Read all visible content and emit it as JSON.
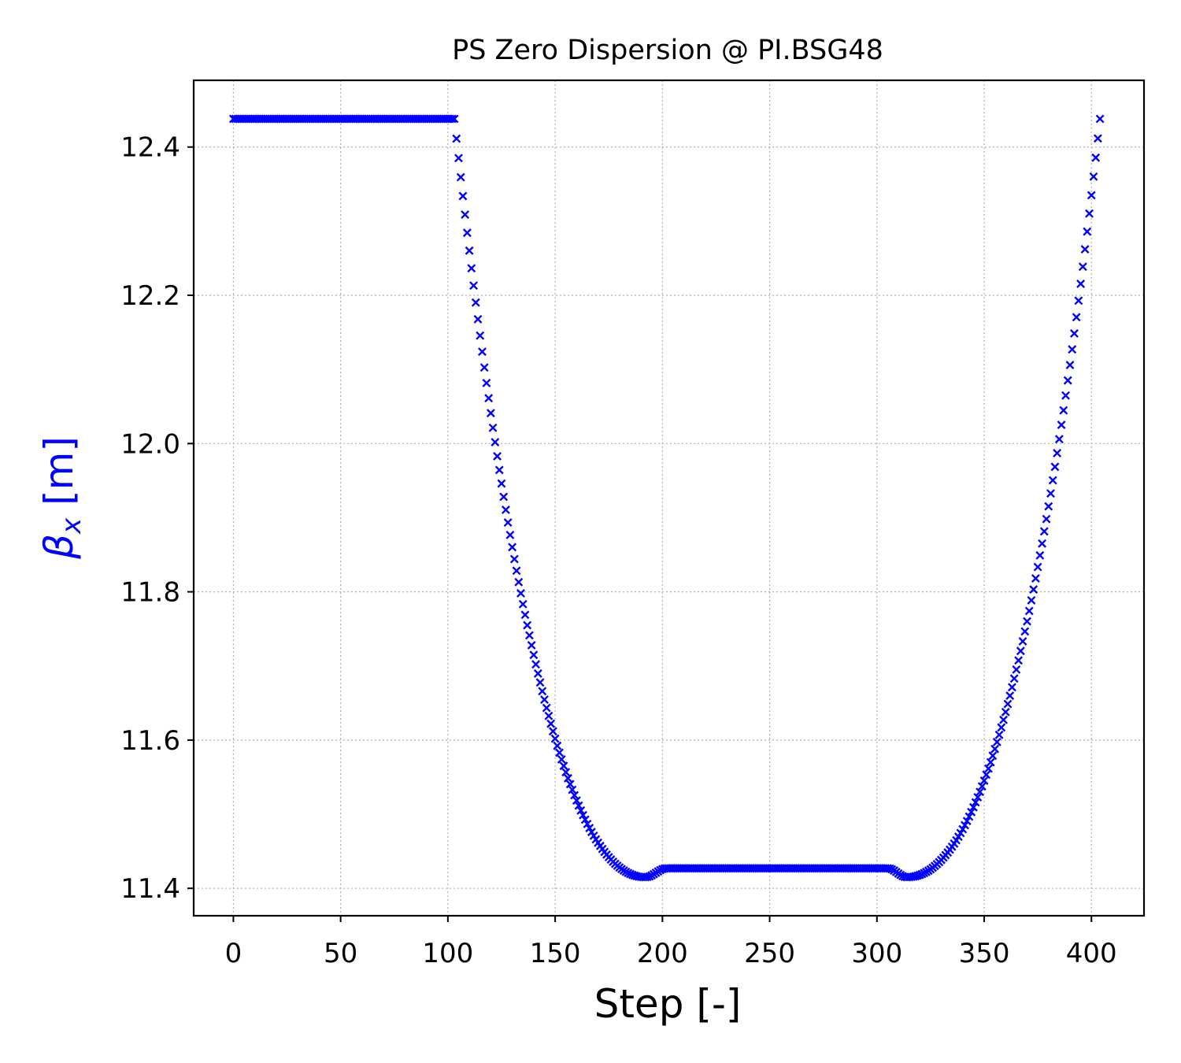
{
  "chart_data": {
    "type": "scatter",
    "title": "PS Zero Dispersion @ PI.BSG48",
    "xlabel": "Step [-]",
    "ylabel": {
      "main": "β",
      "sub": "x",
      "unit": " [m]"
    },
    "xlim": [
      -18.5,
      424.5
    ],
    "ylim": [
      11.363,
      12.49
    ],
    "xticks": [
      0,
      50,
      100,
      150,
      200,
      250,
      300,
      350,
      400
    ],
    "yticks": [
      11.4,
      11.6,
      11.8,
      12.0,
      12.2,
      12.4
    ],
    "ytick_labels": [
      "11.4",
      "11.6",
      "11.8",
      "12.0",
      "12.2",
      "12.4"
    ],
    "grid": true,
    "marker": "x",
    "colors": {
      "series": "#0000ff",
      "ylabel": "#0000ff"
    },
    "series": [
      {
        "marker": "x",
        "segments": [
          {
            "shape": "flat",
            "x_start": 0,
            "x_end": 103,
            "y": 12.438
          },
          {
            "shape": "descent",
            "x_start": 103,
            "x_end": 192,
            "y_start": 12.438,
            "y_end": 11.415
          },
          {
            "shape": "rise",
            "x_start": 192,
            "x_end": 202,
            "y_start": 11.415,
            "y_end": 11.427
          },
          {
            "shape": "flat",
            "x_start": 202,
            "x_end": 305,
            "y": 11.427
          },
          {
            "shape": "dip",
            "x_start": 305,
            "x_end": 314,
            "y_start": 11.427,
            "y_end": 11.415
          },
          {
            "shape": "ascent",
            "x_start": 314,
            "x_end": 404,
            "y_start": 11.415,
            "y_end": 12.438
          }
        ]
      }
    ]
  }
}
